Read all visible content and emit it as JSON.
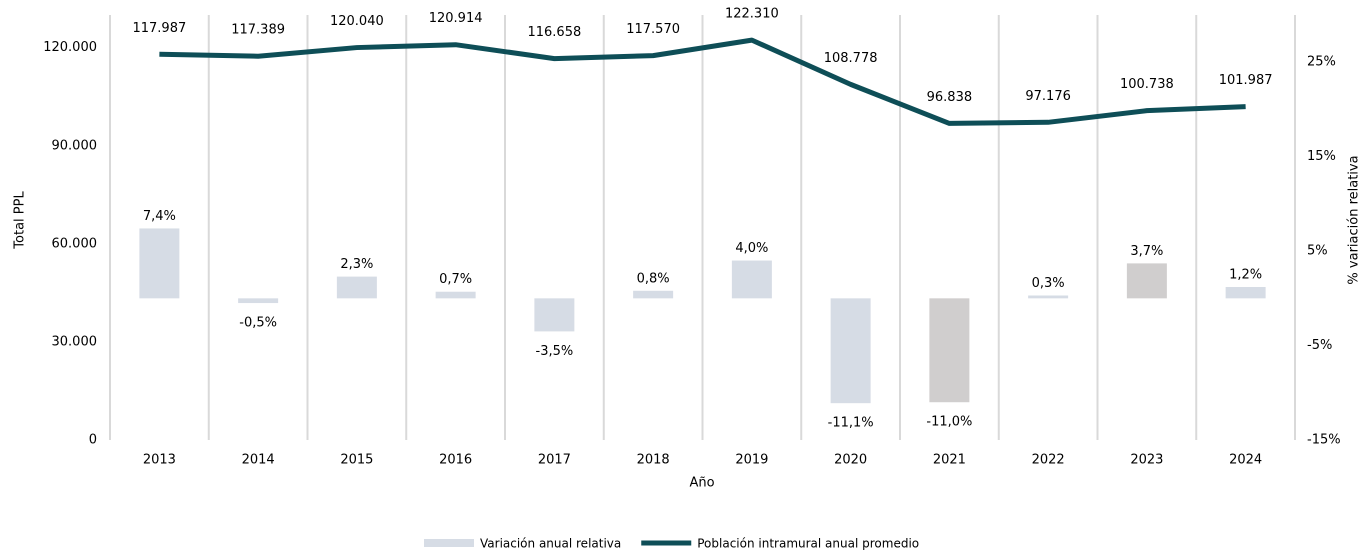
{
  "chart_data": {
    "type": "combo",
    "categories": [
      "2013",
      "2014",
      "2015",
      "2016",
      "2017",
      "2018",
      "2019",
      "2020",
      "2021",
      "2022",
      "2023",
      "2024"
    ],
    "x_label": "Año",
    "y_label": "Total PPL",
    "y2_label": "% variación relativa",
    "ylim": [
      0,
      130000
    ],
    "yticks": [
      0,
      {
        "value": 30000,
        "label": "30.000"
      },
      {
        "value": 60000,
        "label": "60.000"
      },
      {
        "value": 90000,
        "label": "90.000"
      },
      {
        "value": 120000,
        "label": "120.000"
      }
    ],
    "y2lim": [
      -15,
      30
    ],
    "y2ticks": [
      {
        "value": -15,
        "label": "-15%"
      },
      {
        "value": -5,
        "label": "-5%"
      },
      {
        "value": 5,
        "label": "5%"
      },
      {
        "value": 15,
        "label": "15%"
      },
      {
        "value": 25,
        "label": "25%"
      }
    ],
    "series": [
      {
        "name": "Variación anual relativa",
        "type": "bar",
        "axis": "y2",
        "color": "#d6dce5",
        "colors": [
          "#d6dce5",
          "#d6dce5",
          "#d6dce5",
          "#d6dce5",
          "#d6dce5",
          "#d6dce5",
          "#d6dce5",
          "#d6dce5",
          "#d0cece",
          "#d6dce5",
          "#d0cece",
          "#d6dce5"
        ],
        "values": [
          7.4,
          -0.5,
          2.3,
          0.7,
          -3.5,
          0.8,
          4.0,
          -11.1,
          -11.0,
          0.3,
          3.7,
          1.2
        ],
        "value_labels": [
          "7,4%",
          "-0,5%",
          "2,3%",
          "0,7%",
          "-3,5%",
          "0,8%",
          "4,0%",
          "-11,1%",
          "-11,0%",
          "0,3%",
          "3,7%",
          "1,2%"
        ]
      },
      {
        "name": "Población intramural anual promedio",
        "type": "line",
        "color": "#0e4e57",
        "values": [
          117987,
          117389,
          120040,
          120914,
          116658,
          117570,
          122310,
          108778,
          96838,
          97176,
          100738,
          101987
        ],
        "value_labels": [
          "117.987",
          "117.389",
          "120.040",
          "120.914",
          "116.658",
          "117.570",
          "122.310",
          "108.778",
          "96.838",
          "97.176",
          "100.738",
          "101.987"
        ]
      }
    ]
  }
}
